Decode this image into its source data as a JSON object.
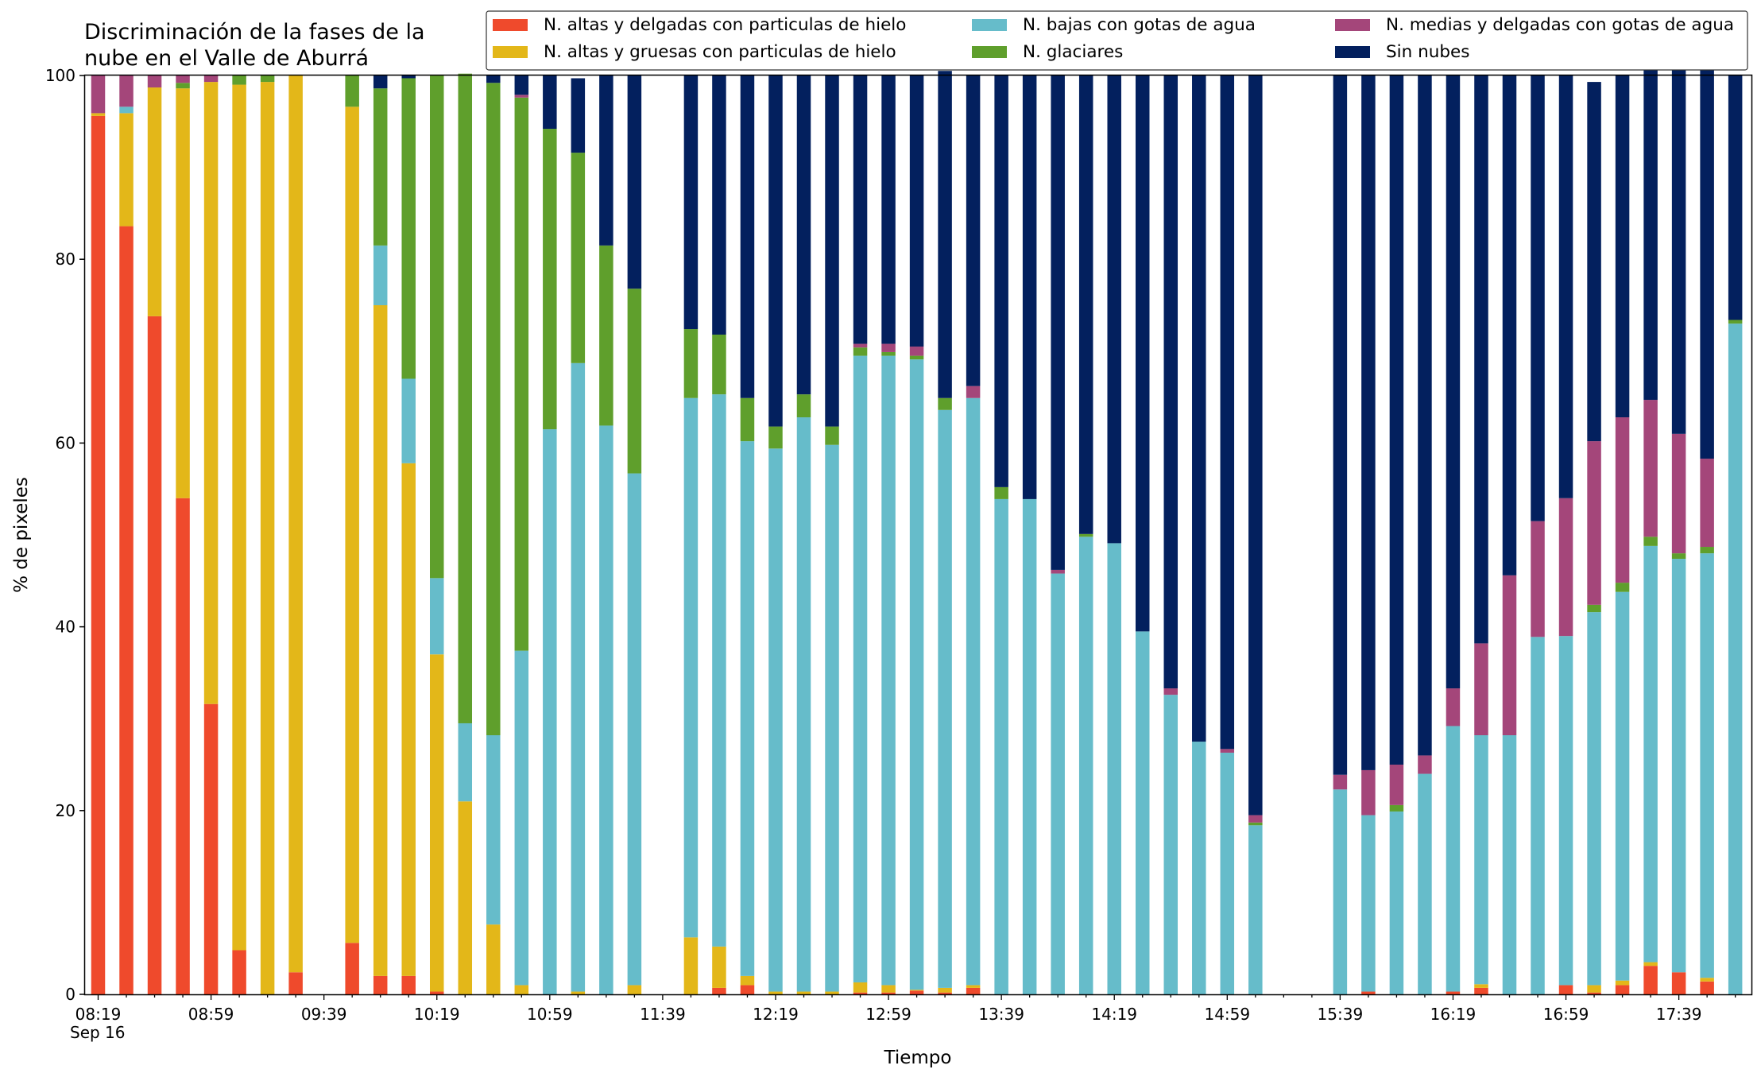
{
  "chart_data": {
    "type": "bar",
    "stacked": true,
    "title_lines": [
      "Discriminación de la fases de la",
      "nube en el Valle de Aburrá"
    ],
    "xlabel": "Tiempo",
    "ylabel": "% de pixeles",
    "ylim": [
      0,
      100
    ],
    "yticks": [
      0,
      20,
      40,
      60,
      80,
      100
    ],
    "grid": false,
    "legend_position": "top-right",
    "x_start_time": "08:19",
    "x_interval_minutes": 10,
    "x_tick_labels": [
      "08:19",
      "08:59",
      "09:39",
      "10:19",
      "10:59",
      "11:39",
      "12:19",
      "12:59",
      "13:39",
      "14:19",
      "14:59",
      "15:39",
      "16:19",
      "16:59",
      "17:39"
    ],
    "x_date_label": "Sep 16",
    "categories": [
      "08:19",
      "08:29",
      "08:39",
      "08:49",
      "08:59",
      "09:09",
      "09:19",
      "09:29",
      "09:39",
      "09:49",
      "09:59",
      "10:09",
      "10:19",
      "10:29",
      "10:39",
      "10:49",
      "10:59",
      "11:09",
      "11:19",
      "11:29",
      "11:39",
      "11:49",
      "11:59",
      "12:09",
      "12:19",
      "12:29",
      "12:39",
      "12:49",
      "12:59",
      "13:09",
      "13:19",
      "13:29",
      "13:39",
      "13:49",
      "13:59",
      "14:09",
      "14:19",
      "14:29",
      "14:39",
      "14:49",
      "14:59",
      "15:09",
      "15:19",
      "15:29",
      "15:39",
      "15:49",
      "15:59",
      "16:09",
      "16:19",
      "16:29",
      "16:39",
      "16:49",
      "16:59",
      "17:09",
      "17:19",
      "17:29",
      "17:39",
      "17:49",
      "17:59"
    ],
    "series": [
      {
        "name": "N. altas y delgadas con particulas de hielo",
        "color": "#ef4a2c",
        "values": [
          95.6,
          83.6,
          73.8,
          54.0,
          31.6,
          4.8,
          0,
          2.4,
          null,
          5.6,
          2.0,
          2.0,
          0.3,
          0,
          0,
          0,
          0,
          0,
          0,
          0,
          null,
          0,
          0.7,
          1.0,
          0,
          0,
          0,
          0.2,
          0.2,
          0.4,
          0.2,
          0.7,
          0,
          0,
          0,
          0,
          0,
          0,
          0,
          0,
          0,
          0,
          null,
          null,
          0,
          0.3,
          0,
          0,
          0.3,
          0.7,
          0,
          0,
          1.0,
          0.2,
          1.0,
          3.1,
          2.4,
          1.4,
          0
        ]
      },
      {
        "name": "N. altas y gruesas con particulas de hielo",
        "color": "#e3b719",
        "values": [
          0.3,
          12.3,
          24.9,
          44.6,
          67.7,
          94.2,
          99.3,
          97.6,
          null,
          91.0,
          73.0,
          55.8,
          36.7,
          21.0,
          7.6,
          1.0,
          0,
          0.3,
          0,
          1.0,
          null,
          6.2,
          4.5,
          1.0,
          0.3,
          0.3,
          0.3,
          1.1,
          0.8,
          0.1,
          0.5,
          0.3,
          0,
          0,
          0,
          0,
          0,
          0,
          0,
          0,
          0,
          0,
          null,
          null,
          0,
          0,
          0,
          0,
          0,
          0.4,
          0,
          0,
          0,
          0.8,
          0.5,
          0.4,
          0,
          0.4,
          0
        ]
      },
      {
        "name": "N. bajas con gotas de agua",
        "color": "#66bcca",
        "values": [
          0,
          0.7,
          0,
          0,
          0,
          0,
          0,
          0,
          null,
          0,
          6.5,
          9.2,
          8.3,
          8.5,
          20.6,
          36.4,
          61.5,
          68.4,
          61.9,
          55.7,
          null,
          58.7,
          60.1,
          58.2,
          59.1,
          62.5,
          59.5,
          68.2,
          68.5,
          68.6,
          62.9,
          63.9,
          53.9,
          53.9,
          45.8,
          49.8,
          49.1,
          39.5,
          32.6,
          27.5,
          26.3,
          18.4,
          null,
          null,
          22.3,
          19.2,
          19.9,
          24.0,
          28.9,
          27.1,
          28.2,
          38.9,
          38.0,
          40.6,
          42.3,
          45.3,
          45.0,
          46.2,
          73.0
        ]
      },
      {
        "name": "N. glaciares",
        "color": "#5f9f2c",
        "values": [
          0,
          0,
          0,
          0.6,
          0,
          1.0,
          0.7,
          0,
          null,
          3.4,
          17.1,
          32.7,
          54.7,
          70.7,
          71.0,
          60.2,
          32.7,
          22.9,
          19.6,
          20.1,
          null,
          7.5,
          6.5,
          4.7,
          2.4,
          2.5,
          2.0,
          0.9,
          0.4,
          0.4,
          1.3,
          0,
          1.3,
          0,
          0,
          0.3,
          0,
          0,
          0,
          0,
          0,
          0.3,
          null,
          null,
          0,
          0,
          0.7,
          0,
          0,
          0,
          0,
          0,
          0,
          0.8,
          1.0,
          1.0,
          0.6,
          0.7,
          0.4
        ]
      },
      {
        "name": "N. medias y delgadas con gotas de agua",
        "color": "#a4467a",
        "values": [
          4.1,
          3.4,
          1.3,
          0.8,
          0.7,
          0,
          0,
          0,
          null,
          0,
          0,
          0,
          0,
          0,
          0,
          0.3,
          0,
          0,
          0,
          0,
          null,
          0,
          0,
          0,
          0,
          0,
          0,
          0.4,
          0.9,
          1.0,
          0,
          1.3,
          0,
          0,
          0.4,
          0,
          0,
          0,
          0.7,
          0,
          0.4,
          0.8,
          null,
          null,
          1.6,
          4.9,
          4.4,
          2.0,
          4.1,
          10.0,
          17.4,
          12.6,
          15.0,
          17.8,
          18.0,
          14.9,
          13.0,
          9.6,
          0
        ]
      },
      {
        "name": "Sin nubes",
        "color": "#03205e",
        "values": [
          0,
          0,
          0,
          0,
          0,
          0,
          0,
          0,
          null,
          0,
          1.4,
          0.3,
          0,
          0,
          0.8,
          2.1,
          5.8,
          8.1,
          18.5,
          23.2,
          null,
          27.6,
          28.2,
          35.1,
          38.2,
          34.7,
          38.2,
          29.2,
          29.2,
          29.5,
          35.6,
          33.8,
          44.8,
          46.1,
          53.8,
          49.9,
          50.9,
          60.5,
          66.7,
          72.5,
          73.3,
          80.5,
          null,
          null,
          76.1,
          75.6,
          75.0,
          74.0,
          66.7,
          61.8,
          54.4,
          48.5,
          46.0,
          39.1,
          37.2,
          40.3,
          41.0,
          43.7,
          26.6
        ]
      }
    ]
  }
}
